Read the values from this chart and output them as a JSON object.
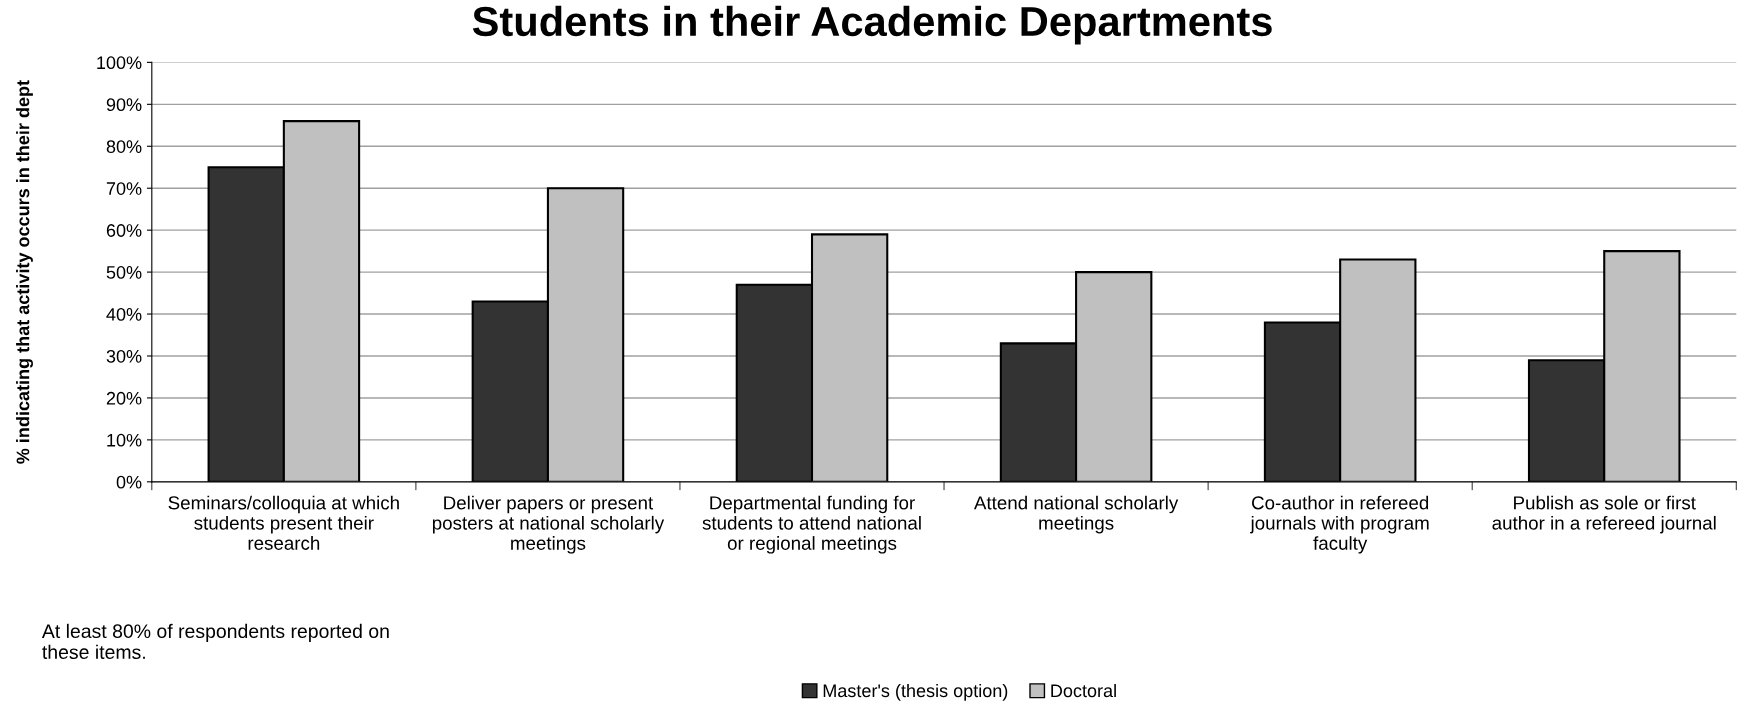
{
  "chart_data": {
    "type": "bar",
    "title": "Students in their Academic Departments",
    "ylabel": "% indicating that activity occurs in their dept",
    "categories": [
      "Seminars/colloquia at which\nstudents present their\nresearch",
      "Deliver papers or present\nposters at national scholarly\nmeetings",
      "Departmental funding for\nstudents to attend national\nor regional meetings",
      "Attend national scholarly\nmeetings",
      "Co-author in refereed\njournals with program\nfaculty",
      "Publish as sole or first\nauthor in a refereed journal"
    ],
    "series": [
      {
        "name": "Master's (thesis option)",
        "color": "#333333",
        "values": [
          75,
          43,
          47,
          33,
          38,
          29
        ]
      },
      {
        "name": "Doctoral",
        "color": "#c0c0c0",
        "values": [
          86,
          70,
          59,
          50,
          53,
          55
        ]
      }
    ],
    "ylim": [
      0,
      100
    ],
    "yticks": [
      {
        "value": 0,
        "label": "0%"
      },
      {
        "value": 10,
        "label": "10%"
      },
      {
        "value": 20,
        "label": "20%"
      },
      {
        "value": 30,
        "label": "30%"
      },
      {
        "value": 40,
        "label": "40%"
      },
      {
        "value": 50,
        "label": "50%"
      },
      {
        "value": 60,
        "label": "60%"
      },
      {
        "value": 70,
        "label": "70%"
      },
      {
        "value": 80,
        "label": "80%"
      },
      {
        "value": 90,
        "label": "90%"
      },
      {
        "value": 100,
        "label": "100%"
      }
    ],
    "grid": "y",
    "legend": "bottom",
    "annotations": [
      "At least 80% of respondents reported on\nthese items."
    ]
  }
}
